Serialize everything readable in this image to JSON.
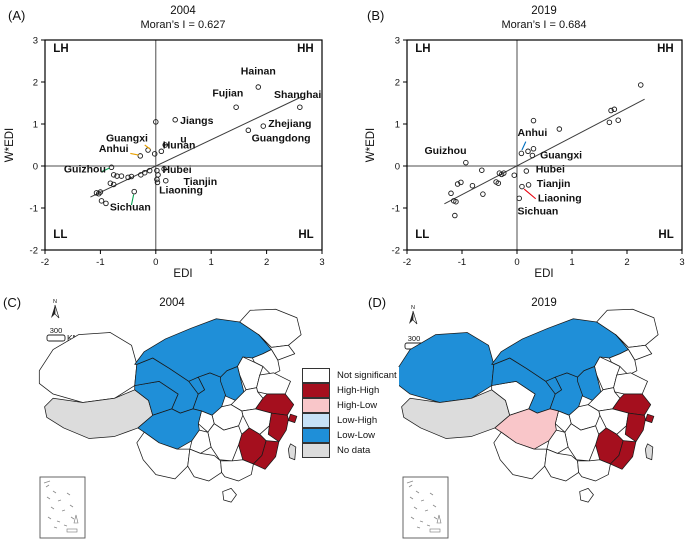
{
  "colors": {
    "blue": "#0070C0",
    "orange": "#E8A000",
    "green": "#00A14E",
    "red": "#E8000D"
  },
  "map_annotations": {
    "north": "N",
    "scale": "300",
    "scale_unit": "KM"
  },
  "map_legend": {
    "items": [
      {
        "key": "not_significant",
        "label": "Not significant",
        "color": "#FFFFFF"
      },
      {
        "key": "high_high",
        "label": "High-High",
        "color": "#A50F1E"
      },
      {
        "key": "high_low",
        "label": "High-Low",
        "color": "#F9C6C9"
      },
      {
        "key": "low_high",
        "label": "Low-High",
        "color": "#C6E1F6"
      },
      {
        "key": "low_low",
        "label": "Low-Low",
        "color": "#1F8FD8"
      },
      {
        "key": "no_data",
        "label": "No data",
        "color": "#DCDCDC"
      }
    ]
  },
  "chart_data": [
    {
      "type": "scatter",
      "panel_label": "(A)",
      "title": "2004",
      "subtitle": "Moran’s I = 0.627",
      "moran_i": 0.627,
      "xlabel": "EDI",
      "ylabel": "W*EDI",
      "xlim": [
        -2,
        3
      ],
      "ylim": [
        -2,
        3
      ],
      "xticks": [
        -2,
        -1,
        0,
        1,
        2,
        3
      ],
      "yticks": [
        -2,
        -1,
        0,
        1,
        2,
        3
      ],
      "fit_line": {
        "x1": -1.18,
        "y1": -0.74,
        "x2": 2.62,
        "y2": 1.64
      },
      "points": [
        [
          0.0,
          1.05
        ],
        [
          0.35,
          1.1
        ],
        [
          1.45,
          1.4
        ],
        [
          1.85,
          1.88
        ],
        [
          2.6,
          1.4
        ],
        [
          1.94,
          0.95
        ],
        [
          1.67,
          0.85
        ],
        [
          0.17,
          0.5
        ],
        [
          0.1,
          0.35
        ],
        [
          -0.02,
          0.29
        ],
        [
          -0.14,
          0.38
        ],
        [
          -0.28,
          0.24
        ],
        [
          -0.8,
          -0.03
        ],
        [
          -0.76,
          -0.21
        ],
        [
          -0.7,
          -0.24
        ],
        [
          -0.62,
          -0.24
        ],
        [
          -0.5,
          -0.27
        ],
        [
          -0.44,
          -0.25
        ],
        [
          -0.82,
          -0.41
        ],
        [
          -0.76,
          -0.44
        ],
        [
          -1.07,
          -0.64
        ],
        [
          -1.03,
          -0.66
        ],
        [
          -1.0,
          -0.62
        ],
        [
          -0.98,
          -0.83
        ],
        [
          -0.9,
          -0.89
        ],
        [
          -0.39,
          -0.61
        ],
        [
          -0.27,
          -0.21
        ],
        [
          -0.2,
          -0.16
        ],
        [
          -0.11,
          -0.11
        ],
        [
          0.02,
          -0.11
        ],
        [
          0.04,
          -0.21
        ],
        [
          0.02,
          -0.32
        ],
        [
          0.03,
          -0.39
        ],
        [
          0.15,
          -0.07
        ],
        [
          0.18,
          -0.35
        ]
      ],
      "quadrants": [
        {
          "label": "LH",
          "x": -1.85,
          "y": 2.72,
          "color": "orange",
          "anchor": "start"
        },
        {
          "label": "HH",
          "x": 2.85,
          "y": 2.72,
          "color": "blue",
          "anchor": "end"
        },
        {
          "label": "LL",
          "x": -1.85,
          "y": -1.72,
          "color": "green",
          "anchor": "start"
        },
        {
          "label": "HL",
          "x": 2.85,
          "y": -1.72,
          "color": "red",
          "anchor": "end"
        }
      ],
      "labels": [
        {
          "text": "Hainan",
          "x": 1.85,
          "y": 2.18,
          "color": "blue"
        },
        {
          "text": "Fujian",
          "x": 1.3,
          "y": 1.66,
          "color": "blue"
        },
        {
          "text": "Shanghai",
          "x": 2.56,
          "y": 1.62,
          "color": "blue"
        },
        {
          "text": "Jiangs",
          "x": 0.44,
          "y": 1.0,
          "color": "blue",
          "anchor": "start"
        },
        {
          "text": "u",
          "x": 0.5,
          "y": 0.56,
          "color": "blue"
        },
        {
          "text": "Hunan",
          "x": 0.42,
          "y": 0.42,
          "color": "blue"
        },
        {
          "text": "Zhejiang",
          "x": 2.03,
          "y": 0.93,
          "color": "blue",
          "anchor": "start"
        },
        {
          "text": "Guangdong",
          "x": 1.73,
          "y": 0.58,
          "color": "blue",
          "anchor": "start"
        },
        {
          "text": "Guangxi",
          "x": -0.52,
          "y": 0.58,
          "color": "orange"
        },
        {
          "text": "Anhui",
          "x": -0.76,
          "y": 0.33,
          "color": "orange"
        },
        {
          "text": "Guizhou",
          "x": -1.28,
          "y": -0.16,
          "color": "green"
        },
        {
          "text": "Sichuan",
          "x": -0.46,
          "y": -1.06,
          "color": "green"
        },
        {
          "text": "Hubei",
          "x": 0.12,
          "y": -0.17,
          "color": "red",
          "anchor": "start"
        },
        {
          "text": "Tianjin",
          "x": 0.5,
          "y": -0.45,
          "color": "red",
          "anchor": "start"
        },
        {
          "text": "Liaoning",
          "x": 0.06,
          "y": -0.66,
          "color": "red",
          "anchor": "start"
        }
      ],
      "leaders": [
        {
          "x1": -0.2,
          "y1": 0.5,
          "x2": -0.1,
          "y2": 0.4,
          "color": "orange"
        },
        {
          "x1": -0.46,
          "y1": 0.3,
          "x2": -0.31,
          "y2": 0.26,
          "color": "orange"
        },
        {
          "x1": -0.97,
          "y1": -0.13,
          "x2": -0.84,
          "y2": -0.05,
          "color": "green"
        },
        {
          "x1": -0.44,
          "y1": -0.93,
          "x2": -0.4,
          "y2": -0.68,
          "color": "green"
        }
      ]
    },
    {
      "type": "scatter",
      "panel_label": "(B)",
      "title": "2019",
      "subtitle": "Moran’s I = 0.684",
      "moran_i": 0.684,
      "xlabel": "EDI",
      "ylabel": "W*EDI",
      "xlim": [
        -2,
        3
      ],
      "ylim": [
        -2,
        3
      ],
      "xticks": [
        -2,
        -1,
        0,
        1,
        2,
        3
      ],
      "yticks": [
        -2,
        -1,
        0,
        1,
        2,
        3
      ],
      "fit_line": {
        "x1": -1.32,
        "y1": -0.9,
        "x2": 2.32,
        "y2": 1.59
      },
      "points": [
        [
          2.25,
          1.93
        ],
        [
          1.71,
          1.32
        ],
        [
          1.77,
          1.35
        ],
        [
          1.68,
          1.04
        ],
        [
          1.84,
          1.09
        ],
        [
          0.3,
          1.08
        ],
        [
          0.77,
          0.88
        ],
        [
          0.3,
          0.41
        ],
        [
          0.2,
          0.35
        ],
        [
          0.28,
          0.25
        ],
        [
          0.08,
          0.3
        ],
        [
          -0.93,
          0.08
        ],
        [
          -0.64,
          -0.1
        ],
        [
          -0.32,
          -0.17
        ],
        [
          -0.28,
          -0.2
        ],
        [
          -0.24,
          -0.17
        ],
        [
          -0.38,
          -0.38
        ],
        [
          -0.34,
          -0.41
        ],
        [
          -0.81,
          -0.47
        ],
        [
          -1.08,
          -0.43
        ],
        [
          -1.02,
          -0.39
        ],
        [
          -1.2,
          -0.65
        ],
        [
          -0.62,
          -0.67
        ],
        [
          -1.15,
          -0.83
        ],
        [
          -1.11,
          -0.85
        ],
        [
          -1.13,
          -1.18
        ],
        [
          0.17,
          -0.12
        ],
        [
          0.09,
          -0.49
        ],
        [
          0.21,
          -0.45
        ],
        [
          0.04,
          -0.77
        ],
        [
          -0.05,
          -0.22
        ]
      ],
      "quadrants": [
        {
          "label": "LH",
          "x": -1.85,
          "y": 2.72,
          "color": "orange",
          "anchor": "start"
        },
        {
          "label": "HH",
          "x": 2.85,
          "y": 2.72,
          "color": "blue",
          "anchor": "end"
        },
        {
          "label": "LL",
          "x": -1.85,
          "y": -1.72,
          "color": "green",
          "anchor": "start"
        },
        {
          "label": "HL",
          "x": 2.85,
          "y": -1.72,
          "color": "red",
          "anchor": "end"
        }
      ],
      "labels": [
        {
          "text": "Anhui",
          "x": 0.28,
          "y": 0.72,
          "color": "blue"
        },
        {
          "text": "Guangxi",
          "x": 0.42,
          "y": 0.18,
          "color": "blue",
          "anchor": "start"
        },
        {
          "text": "Guizhou",
          "x": -1.3,
          "y": 0.28,
          "color": "orange"
        },
        {
          "text": "Hubei",
          "x": 0.34,
          "y": -0.16,
          "color": "red",
          "anchor": "start"
        },
        {
          "text": "Tianjin",
          "x": 0.36,
          "y": -0.5,
          "color": "red",
          "anchor": "start"
        },
        {
          "text": "Liaoning",
          "x": 0.38,
          "y": -0.85,
          "color": "red",
          "anchor": "start"
        },
        {
          "text": "Sichuan",
          "x": 0.38,
          "y": -1.16,
          "color": "red"
        }
      ],
      "leaders": [
        {
          "x1": 0.16,
          "y1": 0.58,
          "x2": 0.09,
          "y2": 0.38,
          "color": "blue"
        },
        {
          "x1": 0.34,
          "y1": -0.78,
          "x2": 0.13,
          "y2": -0.55,
          "color": "red"
        }
      ]
    },
    {
      "type": "choropleth",
      "panel_label": "(C)",
      "title": "2004",
      "classes": {
        "xinjiang": "not_significant",
        "tibet": "no_data",
        "qinghai": "low_low",
        "gansu": "low_low",
        "ningxia": "low_low",
        "shaanxi": "low_low",
        "inner_mongolia": "low_low",
        "shanxi": "low_low",
        "sichuan": "low_low",
        "heilongjiang": "not_significant",
        "jilin": "not_significant",
        "liaoning": "not_significant",
        "hebei": "not_significant",
        "shandong": "not_significant",
        "henan": "not_significant",
        "jiangsu": "high_high",
        "shanghai": "high_high",
        "anhui": "not_significant",
        "hubei": "not_significant",
        "chongqing": "not_significant",
        "zhejiang": "high_high",
        "jiangxi": "high_high",
        "hunan": "not_significant",
        "guizhou": "not_significant",
        "yunnan": "not_significant",
        "guangxi": "not_significant",
        "guangdong": "not_significant",
        "fujian": "high_high",
        "hainan": "not_significant",
        "taiwan": "no_data"
      }
    },
    {
      "type": "choropleth",
      "panel_label": "(D)",
      "title": "2019",
      "classes": {
        "xinjiang": "low_low",
        "tibet": "no_data",
        "qinghai": "not_significant",
        "gansu": "low_low",
        "ningxia": "low_low",
        "shaanxi": "low_low",
        "inner_mongolia": "low_low",
        "shanxi": "low_low",
        "sichuan": "high_low",
        "heilongjiang": "not_significant",
        "jilin": "not_significant",
        "liaoning": "not_significant",
        "hebei": "not_significant",
        "shandong": "not_significant",
        "henan": "not_significant",
        "jiangsu": "high_high",
        "shanghai": "high_high",
        "anhui": "not_significant",
        "hubei": "not_significant",
        "chongqing": "not_significant",
        "zhejiang": "high_high",
        "jiangxi": "high_high",
        "hunan": "not_significant",
        "guizhou": "not_significant",
        "yunnan": "not_significant",
        "guangxi": "not_significant",
        "guangdong": "not_significant",
        "fujian": "high_high",
        "hainan": "not_significant",
        "taiwan": "no_data"
      }
    }
  ]
}
